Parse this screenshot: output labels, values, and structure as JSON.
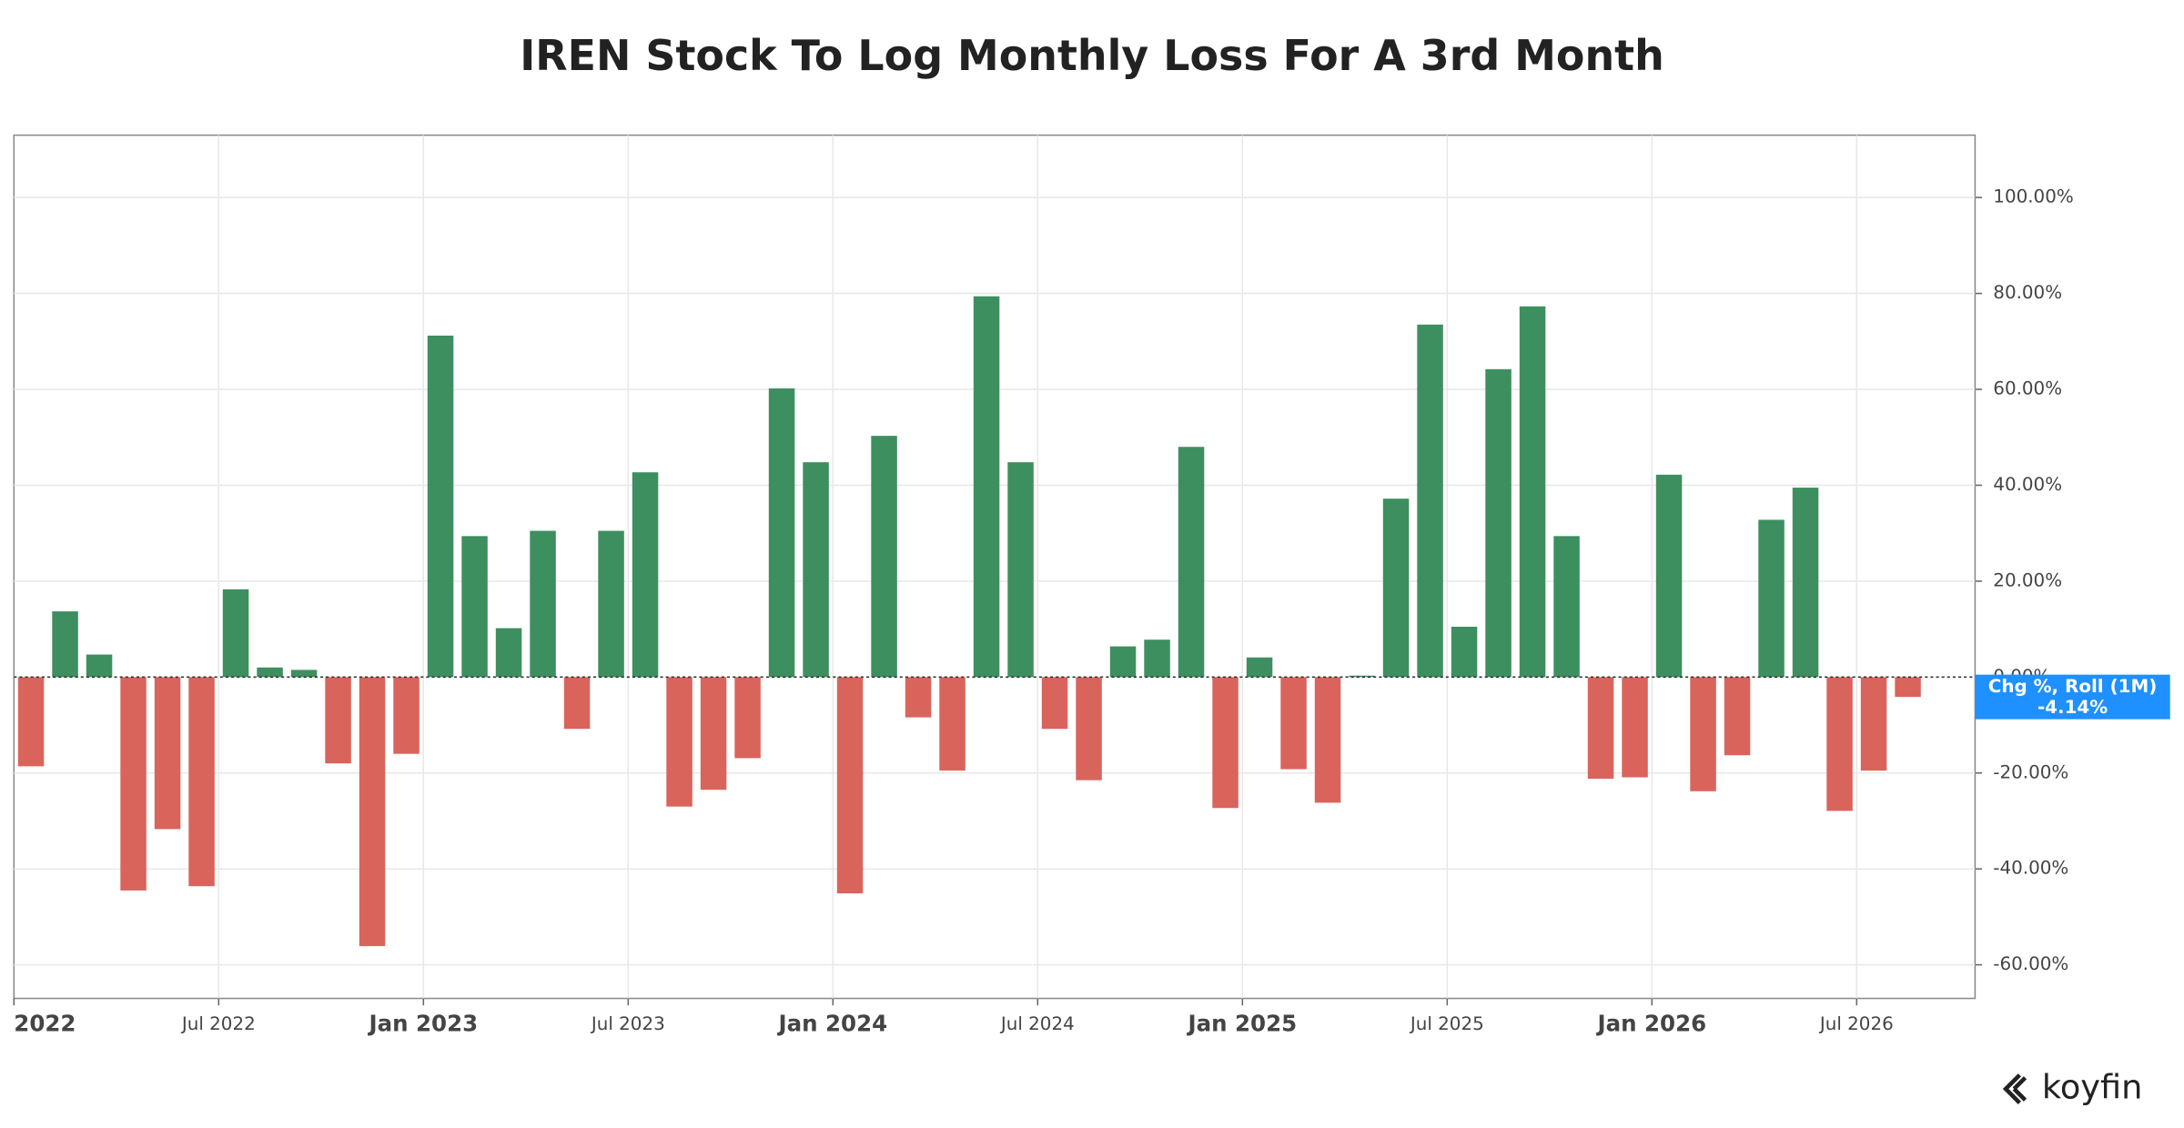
{
  "chart_data": {
    "type": "bar",
    "title": "IREN Stock To Log Monthly Loss For A 3rd Month",
    "categories": [
      "2022",
      null,
      null,
      null,
      null,
      null,
      "Jul 2022",
      null,
      null,
      null,
      null,
      null,
      "Jan 2023",
      null,
      null,
      null,
      null,
      null,
      "Jul 2023",
      null,
      null,
      null,
      null,
      null,
      "Jan 2024",
      null,
      null,
      null,
      null,
      null,
      "Jul 2024",
      null,
      null,
      null,
      null,
      null,
      "Jan 2025",
      null,
      null,
      null,
      null,
      null,
      "Jul 2025",
      null,
      null,
      null,
      null,
      null,
      "Jan 2026",
      null,
      null,
      null,
      null,
      null,
      "Jul 2026",
      null
    ],
    "series": [
      {
        "name": "Chg %, Roll (1M)",
        "values": [
          -18.6,
          13.7,
          4.7,
          -44.5,
          -31.7,
          -43.6,
          18.3,
          2.0,
          1.5,
          -18.0,
          -56.1,
          -16.0,
          71.2,
          29.4,
          10.2,
          30.5,
          -10.8,
          30.5,
          42.7,
          -27.0,
          -23.5,
          -16.9,
          60.2,
          44.8,
          -45.1,
          50.3,
          -8.4,
          -19.5,
          79.4,
          44.8,
          -10.8,
          -21.5,
          6.4,
          7.8,
          48.0,
          -27.3,
          4.1,
          -19.2,
          -26.2,
          0.3,
          37.2,
          73.5,
          10.5,
          64.2,
          77.3,
          29.4,
          -21.2,
          -20.9,
          42.2,
          -23.8,
          -16.3,
          32.8,
          39.5,
          -27.9,
          -19.5,
          -4.14
        ],
        "last_value_label": "-4.14%"
      }
    ],
    "positive_color": "#3d8f5f",
    "negative_color": "#d9645c",
    "ylim": [
      -67,
      113
    ],
    "yticks": [
      {
        "value": -60,
        "label": "-60.00%"
      },
      {
        "value": -40,
        "label": "-40.00%"
      },
      {
        "value": -20,
        "label": "-20.00%"
      },
      {
        "value": 0,
        "label": "0.00%"
      },
      {
        "value": 20,
        "label": "20.00%"
      },
      {
        "value": 40,
        "label": "40.00%"
      },
      {
        "value": 60,
        "label": "60.00%"
      },
      {
        "value": 80,
        "label": "80.00%"
      },
      {
        "value": 100,
        "label": "100.00%"
      }
    ],
    "grid": true,
    "brand": "koyfin"
  }
}
